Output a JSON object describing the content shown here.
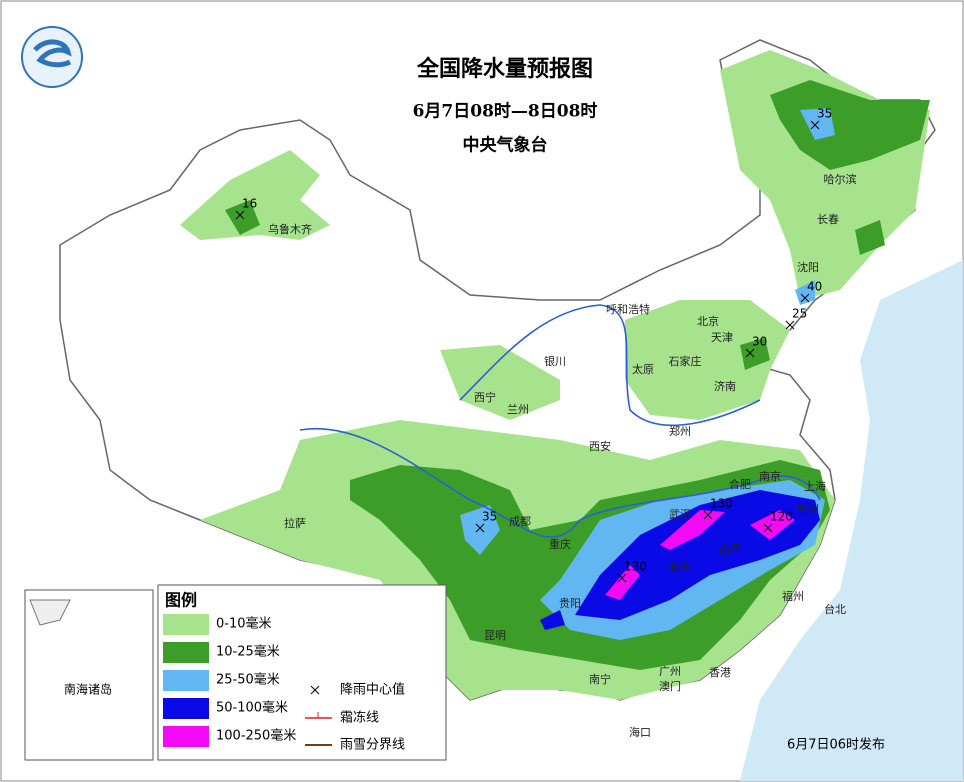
{
  "header": {
    "title": "全国降水量预报图",
    "period": "6月7日08时—8日08时",
    "agency": "中央气象台"
  },
  "legend": {
    "title": "图例",
    "items": [
      {
        "label": "0-10毫米",
        "color": "#a6e38c"
      },
      {
        "label": "10-25毫米",
        "color": "#3c9e28"
      },
      {
        "label": "25-50毫米",
        "color": "#62b6f2"
      },
      {
        "label": "50-100毫米",
        "color": "#0a0ae6"
      },
      {
        "label": "100-250毫米",
        "color": "#f50af5"
      }
    ],
    "symbols": [
      "降雨中心值",
      "霜冻线",
      "雨雪分界线"
    ]
  },
  "cities": [
    "乌鲁木齐",
    "哈尔滨",
    "长春",
    "沈阳",
    "呼和浩特",
    "北京",
    "天津",
    "石家庄",
    "太原",
    "济南",
    "银川",
    "西宁",
    "兰州",
    "西安",
    "郑州",
    "拉萨",
    "成都",
    "重庆",
    "武汉",
    "合肥",
    "南京",
    "上海",
    "杭州",
    "南昌",
    "长沙",
    "贵阳",
    "昆明",
    "福州",
    "台北",
    "南宁",
    "广州",
    "香港",
    "澳门",
    "海口"
  ],
  "centers": [
    16,
    35,
    40,
    25,
    30,
    35,
    130,
    130,
    120
  ],
  "inset_label": "南海诸岛",
  "footer": "6月7日06时发布"
}
